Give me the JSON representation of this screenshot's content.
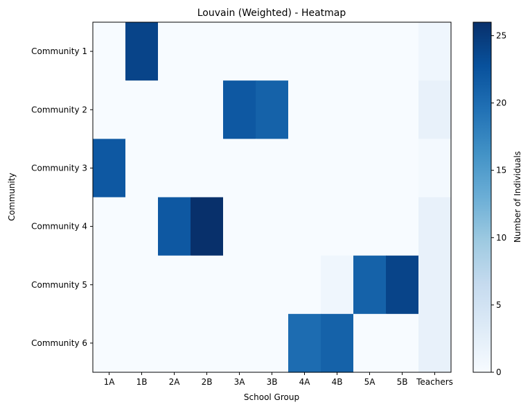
{
  "chart_data": {
    "type": "heatmap",
    "title": "Louvain (Weighted) - Heatmap",
    "xlabel": "School Group",
    "ylabel": "Community",
    "x_categories": [
      "1A",
      "1B",
      "2A",
      "2B",
      "3A",
      "3B",
      "4A",
      "4B",
      "5A",
      "5B",
      "Teachers"
    ],
    "y_categories": [
      "Community 1",
      "Community 2",
      "Community 3",
      "Community 4",
      "Community 5",
      "Community 6"
    ],
    "values": [
      [
        0,
        24,
        0,
        0,
        0,
        0,
        0,
        0,
        0,
        0,
        1
      ],
      [
        0,
        0,
        0,
        0,
        22,
        21,
        0,
        0,
        0,
        0,
        2
      ],
      [
        22,
        0,
        0,
        0,
        0,
        0,
        0,
        0,
        0,
        0,
        0.5
      ],
      [
        0,
        0,
        22,
        26,
        0,
        0,
        0,
        0,
        0,
        0,
        2
      ],
      [
        0,
        0,
        0,
        0,
        0,
        0,
        0,
        1,
        21,
        24,
        2
      ],
      [
        0,
        0,
        0,
        0,
        0,
        0,
        20,
        21,
        0,
        0,
        2
      ]
    ],
    "colorbar": {
      "label": "Number of Individuals",
      "range": [
        0,
        26
      ],
      "ticks": [
        0,
        5,
        10,
        15,
        20,
        25
      ]
    },
    "colormap": "Blues",
    "colors": {
      "low": "#f7fbff",
      "high": "#08306b"
    },
    "grid": false
  }
}
